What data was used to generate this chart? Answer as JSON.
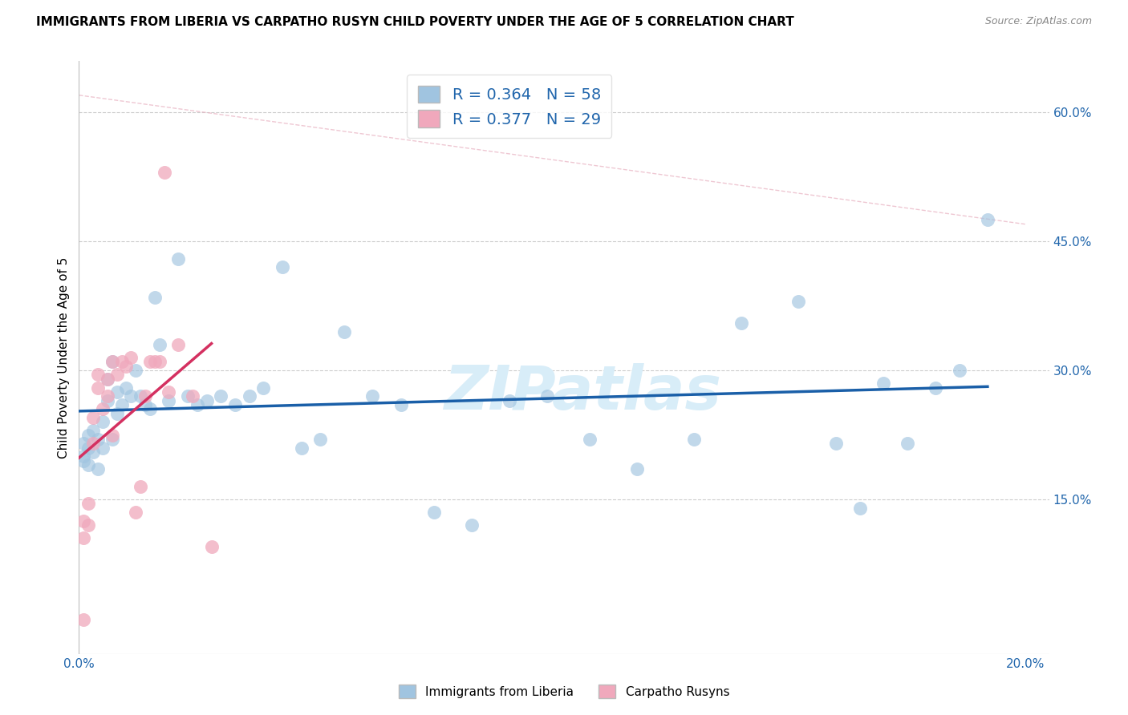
{
  "title": "IMMIGRANTS FROM LIBERIA VS CARPATHO RUSYN CHILD POVERTY UNDER THE AGE OF 5 CORRELATION CHART",
  "source": "Source: ZipAtlas.com",
  "ylabel": "Child Poverty Under the Age of 5",
  "xlim": [
    0.0,
    0.205
  ],
  "ylim": [
    -0.03,
    0.66
  ],
  "blue_R": 0.364,
  "blue_N": 58,
  "pink_R": 0.377,
  "pink_N": 29,
  "blue_color": "#a0c4e0",
  "pink_color": "#f0a8bc",
  "blue_line_color": "#1a5fa8",
  "pink_line_color": "#d43060",
  "dash_line_color": "#e8b0c0",
  "grid_color": "#cccccc",
  "watermark": "ZIPatlas",
  "watermark_color": "#d8edf8",
  "bg_color": "#ffffff",
  "blue_scatter_x": [
    0.001,
    0.001,
    0.001,
    0.002,
    0.002,
    0.002,
    0.003,
    0.003,
    0.004,
    0.004,
    0.005,
    0.005,
    0.006,
    0.006,
    0.007,
    0.007,
    0.008,
    0.008,
    0.009,
    0.01,
    0.011,
    0.012,
    0.013,
    0.014,
    0.015,
    0.016,
    0.017,
    0.019,
    0.021,
    0.023,
    0.025,
    0.027,
    0.03,
    0.033,
    0.036,
    0.039,
    0.043,
    0.047,
    0.051,
    0.056,
    0.062,
    0.068,
    0.075,
    0.083,
    0.091,
    0.099,
    0.108,
    0.118,
    0.13,
    0.14,
    0.152,
    0.16,
    0.165,
    0.17,
    0.175,
    0.181,
    0.186,
    0.192
  ],
  "blue_scatter_y": [
    0.215,
    0.2,
    0.195,
    0.225,
    0.21,
    0.19,
    0.23,
    0.205,
    0.22,
    0.185,
    0.24,
    0.21,
    0.29,
    0.265,
    0.31,
    0.22,
    0.275,
    0.25,
    0.26,
    0.28,
    0.27,
    0.3,
    0.27,
    0.26,
    0.255,
    0.385,
    0.33,
    0.265,
    0.43,
    0.27,
    0.26,
    0.265,
    0.27,
    0.26,
    0.27,
    0.28,
    0.42,
    0.21,
    0.22,
    0.345,
    0.27,
    0.26,
    0.135,
    0.12,
    0.265,
    0.27,
    0.22,
    0.185,
    0.22,
    0.355,
    0.38,
    0.215,
    0.14,
    0.285,
    0.215,
    0.28,
    0.3,
    0.475
  ],
  "pink_scatter_x": [
    0.001,
    0.001,
    0.001,
    0.002,
    0.002,
    0.003,
    0.003,
    0.004,
    0.004,
    0.005,
    0.006,
    0.006,
    0.007,
    0.007,
    0.008,
    0.009,
    0.01,
    0.011,
    0.012,
    0.013,
    0.014,
    0.015,
    0.016,
    0.017,
    0.018,
    0.019,
    0.021,
    0.024,
    0.028
  ],
  "pink_scatter_y": [
    0.01,
    0.105,
    0.125,
    0.12,
    0.145,
    0.215,
    0.245,
    0.295,
    0.28,
    0.255,
    0.27,
    0.29,
    0.31,
    0.225,
    0.295,
    0.31,
    0.305,
    0.315,
    0.135,
    0.165,
    0.27,
    0.31,
    0.31,
    0.31,
    0.53,
    0.275,
    0.33,
    0.27,
    0.095
  ]
}
